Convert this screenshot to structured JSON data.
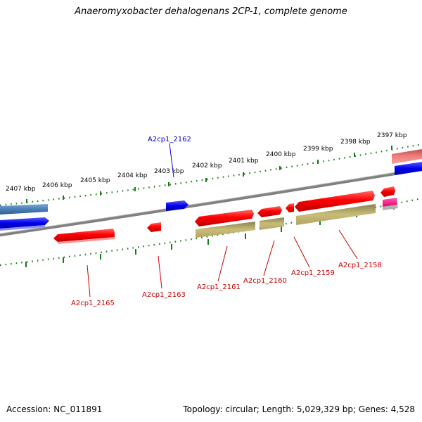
{
  "title": "Anaeromyxobacter dehalogenans 2CP-1, complete genome",
  "footer": {
    "accession": "Accession: NC_011891",
    "summary": "Topology: circular; Length: 5,029,329 bp; Genes: 4,528"
  },
  "ruler_labels": [
    "2407 kbp",
    "2406 kbp",
    "2405 kbp",
    "2404 kbp",
    "2403 kbp",
    "2402 kbp",
    "2401 kbp",
    "2400 kbp",
    "2399 kbp",
    "2398 kbp",
    "2397 kbp"
  ],
  "gene_labels": [
    "A2cp1_2162",
    "A2cp1_2165",
    "A2cp1_2163",
    "A2cp1_2161",
    "A2cp1_2160",
    "A2cp1_2159",
    "A2cp1_2158"
  ],
  "colors": {
    "cds_forward": "#ff0000",
    "cds_shadow": "#c8bd78",
    "gene_blue": "#0000ee",
    "gene_steel": "#4a7fb5",
    "label_red": "#cc0000",
    "label_blue": "#0000cc",
    "tick_green": "#1a7a1a",
    "backbone": "#808080"
  }
}
